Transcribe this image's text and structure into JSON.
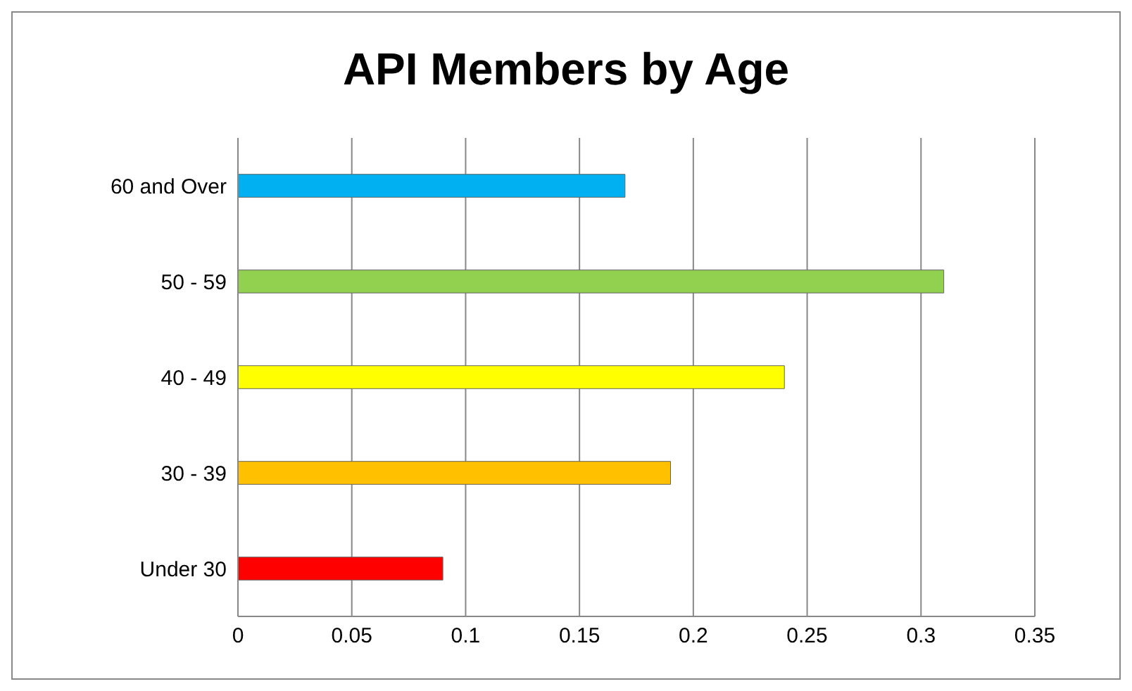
{
  "chart_data": {
    "type": "bar",
    "orientation": "horizontal",
    "title": "API Members by Age",
    "categories": [
      "60 and Over",
      "50 - 59",
      "40 - 49",
      "30 - 39",
      "Under 30"
    ],
    "values": [
      0.17,
      0.31,
      0.24,
      0.19,
      0.09
    ],
    "colors": [
      "#00b0f0",
      "#92d050",
      "#ffff00",
      "#ffc000",
      "#ff0000"
    ],
    "xlim": [
      0,
      0.35
    ],
    "xticks": [
      0,
      0.05,
      0.1,
      0.15,
      0.2,
      0.25,
      0.3,
      0.35
    ],
    "grid": "x"
  }
}
